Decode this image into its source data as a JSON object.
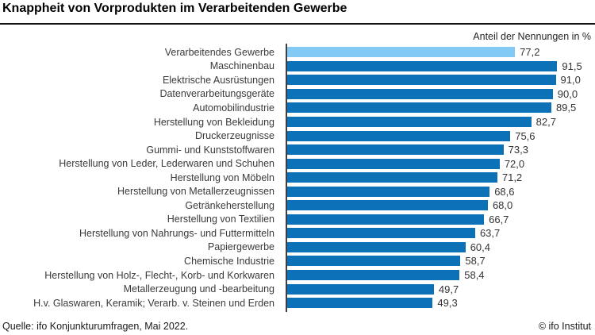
{
  "header": {
    "title": "Knappheit von Vorprodukten im Verarbeitenden Gewerbe",
    "axis_note": "Anteil der Nennungen in %"
  },
  "footer": {
    "source": "Quelle: ifo Konjunkturumfragen, Mai 2022.",
    "copyright": "© ifo Institut"
  },
  "chart_data": {
    "type": "bar",
    "orientation": "horizontal",
    "title": "Knappheit von Vorprodukten im Verarbeitenden Gewerbe",
    "xlabel": "Anteil der Nennungen in %",
    "ylabel": "",
    "xlim": [
      0,
      100
    ],
    "grid": false,
    "legend": "none",
    "highlight_index": 0,
    "colors": {
      "highlight": "#82c9f5",
      "primary": "#0d71b7",
      "axis": "#3f3f3f"
    },
    "categories": [
      "Verarbeitendes Gewerbe",
      "Maschinenbau",
      "Elektrische Ausrüstungen",
      "Datenverarbeitungsgeräte",
      "Automobilindustrie",
      "Herstellung von Bekleidung",
      "Druckerzeugnisse",
      "Gummi- und Kunststoffwaren",
      "Herstellung von Leder, Lederwaren und Schuhen",
      "Herstellung von Möbeln",
      "Herstellung von Metallerzeugnissen",
      "Getränkeherstellung",
      "Herstellung von Textilien",
      "Herstellung von Nahrungs- und Futtermitteln",
      "Papiergewerbe",
      "Chemische Industrie",
      "Herstellung von Holz-, Flecht-, Korb- und Korkwaren",
      "Metallerzeugung und -bearbeitung",
      "H.v. Glaswaren, Keramik; Verarb. v. Steinen und Erden"
    ],
    "values": [
      77.2,
      91.5,
      91.0,
      90.0,
      89.5,
      82.7,
      75.6,
      73.3,
      72.0,
      71.2,
      68.6,
      68.0,
      66.7,
      63.7,
      60.4,
      58.7,
      58.4,
      49.7,
      49.3
    ],
    "value_labels": [
      "77,2",
      "91,5",
      "91,0",
      "90,0",
      "89,5",
      "82,7",
      "75,6",
      "73,3",
      "72,0",
      "71,2",
      "68,6",
      "68,0",
      "66,7",
      "63,7",
      "60,4",
      "58,7",
      "58,4",
      "49,7",
      "49,3"
    ]
  }
}
